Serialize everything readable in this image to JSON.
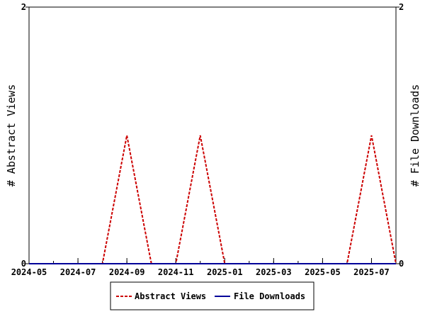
{
  "chart_data": {
    "type": "line",
    "title": "",
    "x_ticks": [
      "2024-05",
      "2024-07",
      "2024-09",
      "2024-11",
      "2025-01",
      "2025-03",
      "2025-05",
      "2025-07"
    ],
    "x_range": [
      "2024-05",
      "2025-08"
    ],
    "y_left": {
      "label": "# Abstract Views",
      "range": [
        0,
        2
      ],
      "ticks": [
        "0",
        "2"
      ]
    },
    "y_right": {
      "label": "# File Downloads",
      "range": [
        0,
        2
      ],
      "ticks": [
        "0",
        "2"
      ]
    },
    "grid": false,
    "legend_position": "bottom",
    "series": [
      {
        "name": "Abstract Views",
        "axis": "left",
        "color": "#cc0000",
        "style": "dashed",
        "x": [
          "2024-05",
          "2024-06",
          "2024-07",
          "2024-08",
          "2024-09",
          "2024-10",
          "2024-11",
          "2024-12",
          "2025-01",
          "2025-02",
          "2025-03",
          "2025-04",
          "2025-05",
          "2025-06",
          "2025-07",
          "2025-08"
        ],
        "values": [
          0,
          0,
          0,
          0,
          1,
          0,
          0,
          1,
          0,
          0,
          0,
          0,
          0,
          0,
          1,
          0
        ]
      },
      {
        "name": "File Downloads",
        "axis": "right",
        "color": "#000099",
        "style": "solid",
        "x": [
          "2024-05",
          "2024-06",
          "2024-07",
          "2024-08",
          "2024-09",
          "2024-10",
          "2024-11",
          "2024-12",
          "2025-01",
          "2025-02",
          "2025-03",
          "2025-04",
          "2025-05",
          "2025-06",
          "2025-07",
          "2025-08"
        ],
        "values": [
          0,
          0,
          0,
          0,
          0,
          0,
          0,
          0,
          0,
          0,
          0,
          0,
          0,
          0,
          0,
          0
        ]
      }
    ]
  }
}
